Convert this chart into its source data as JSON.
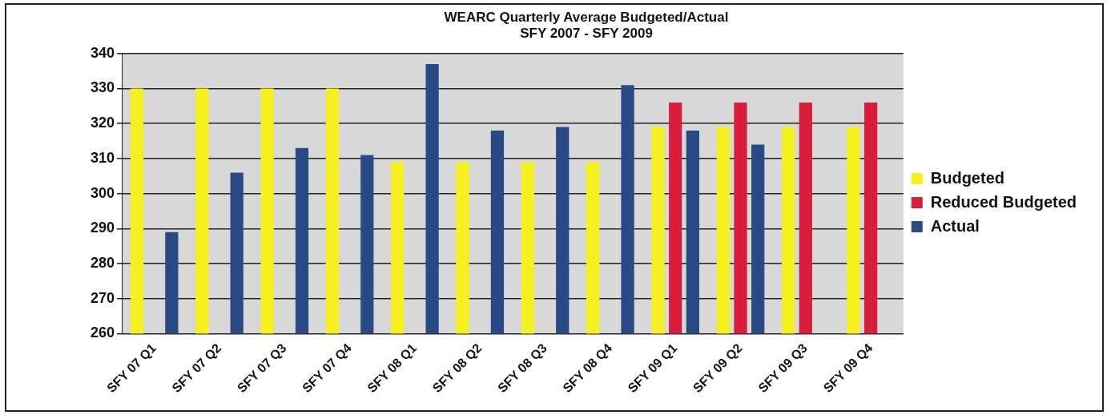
{
  "chart_data": {
    "type": "bar",
    "title": "WEARC Quarterly Average Budgeted/Actual",
    "subtitle": "SFY 2007 - SFY 2009",
    "categories": [
      "SFY 07 Q1",
      "SFY 07 Q2",
      "SFY 07 Q3",
      "SFY 07 Q4",
      "SFY 08 Q1",
      "SFY 08 Q2",
      "SFY 08 Q3",
      "SFY 08 Q4",
      "SFY 09 Q1",
      "SFY 09 Q2",
      "SFY 09 Q3",
      "SFY 09 Q4"
    ],
    "series": [
      {
        "name": "Budgeted",
        "color": "#f5f01e",
        "values": [
          330,
          330,
          330,
          330,
          309,
          309,
          309,
          309,
          319,
          319,
          319,
          319
        ]
      },
      {
        "name": "Reduced Budgeted",
        "color": "#d81e3c",
        "values": [
          null,
          null,
          null,
          null,
          null,
          null,
          null,
          null,
          326,
          326,
          326,
          326
        ]
      },
      {
        "name": "Actual",
        "color": "#2a4a86",
        "values": [
          289,
          306,
          313,
          311,
          337,
          318,
          319,
          331,
          318,
          314,
          null,
          null
        ]
      }
    ],
    "ylim": [
      260,
      340
    ],
    "yticks": [
      260,
      270,
      280,
      290,
      300,
      310,
      320,
      330,
      340
    ],
    "grid": "y",
    "legend": "right"
  }
}
